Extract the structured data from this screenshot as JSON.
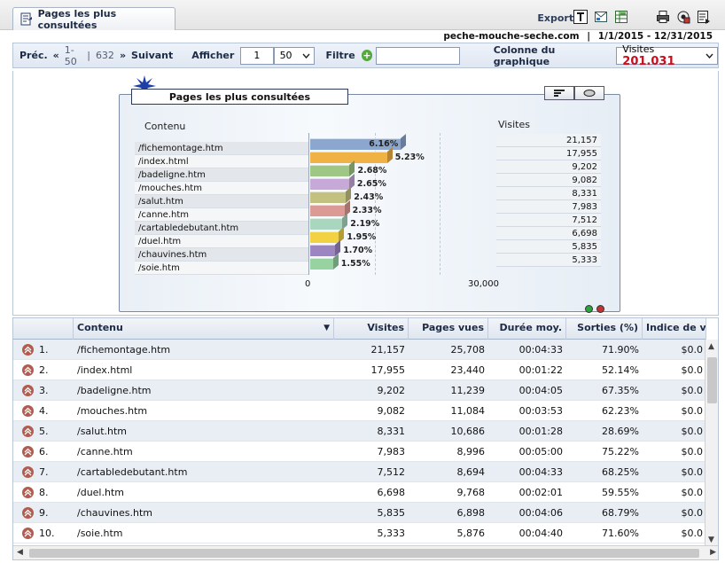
{
  "tab": {
    "title": "Pages les plus consultées"
  },
  "header": {
    "export_label": "Exporter",
    "site": "peche-mouche-seche.com",
    "separator": "|",
    "date_range": "1/1/2015 - 12/31/2015"
  },
  "toolbar": {
    "prev_label": "Préc.",
    "range": "1-50",
    "separator": "|",
    "total": "632",
    "next_label": "Suivant",
    "show_label": "Afficher",
    "page_value": "1",
    "page_size": "50",
    "filter_label": "Filtre",
    "filter_value": "",
    "chart_column_label": "Colonne du graphique",
    "chart_column_value": "Visites",
    "chart_column_total": "201.031"
  },
  "chart": {
    "title": "Pages les plus consultées",
    "content_label": "Contenu",
    "visits_label": "Visites",
    "axis_min": "0",
    "axis_max": "30,000"
  },
  "chart_data": {
    "type": "bar",
    "title": "Pages les plus consultées",
    "categories": [
      "/fichemontage.htm",
      "/index.html",
      "/badeligne.htm",
      "/mouches.htm",
      "/salut.htm",
      "/canne.htm",
      "/cartabledebutant.htm",
      "/duel.htm",
      "/chauvines.htm",
      "/soie.htm"
    ],
    "values": [
      21157,
      17955,
      9202,
      9082,
      8331,
      7983,
      7512,
      6698,
      5835,
      5333
    ],
    "value_labels": [
      "21,157",
      "17,955",
      "9,202",
      "9,082",
      "8,331",
      "7,983",
      "7,512",
      "6,698",
      "5,835",
      "5,333"
    ],
    "percent_labels": [
      "6.16%",
      "5.23%",
      "2.68%",
      "2.65%",
      "2.43%",
      "2.33%",
      "2.19%",
      "1.95%",
      "1.70%",
      "1.55%"
    ],
    "colors": [
      "#8ba7cf",
      "#f0b145",
      "#9ec684",
      "#c7a9d8",
      "#c2c17f",
      "#dc9a95",
      "#a9d6bf",
      "#f2d142",
      "#9c86c2",
      "#96d3a1"
    ],
    "xlabel": "",
    "ylabel": "",
    "xlim": [
      0,
      30000
    ],
    "orientation": "horizontal"
  },
  "table": {
    "columns": [
      "Contenu",
      "Visites",
      "Pages vues",
      "Durée moy.",
      "Sorties (%)",
      "Indice de vale"
    ],
    "rows": [
      {
        "rank": "1.",
        "content": "/fichemontage.htm",
        "visits": "21,157",
        "views": "25,708",
        "duration": "00:04:33",
        "exits": "71.90%",
        "index": "$0.0"
      },
      {
        "rank": "2.",
        "content": "/index.html",
        "visits": "17,955",
        "views": "23,440",
        "duration": "00:01:22",
        "exits": "52.14%",
        "index": "$0.0"
      },
      {
        "rank": "3.",
        "content": "/badeligne.htm",
        "visits": "9,202",
        "views": "11,239",
        "duration": "00:04:05",
        "exits": "67.35%",
        "index": "$0.0"
      },
      {
        "rank": "4.",
        "content": "/mouches.htm",
        "visits": "9,082",
        "views": "11,084",
        "duration": "00:03:53",
        "exits": "62.23%",
        "index": "$0.0"
      },
      {
        "rank": "5.",
        "content": "/salut.htm",
        "visits": "8,331",
        "views": "10,686",
        "duration": "00:01:28",
        "exits": "28.69%",
        "index": "$0.0"
      },
      {
        "rank": "6.",
        "content": "/canne.htm",
        "visits": "7,983",
        "views": "8,996",
        "duration": "00:05:00",
        "exits": "75.22%",
        "index": "$0.0"
      },
      {
        "rank": "7.",
        "content": "/cartabledebutant.htm",
        "visits": "7,512",
        "views": "8,694",
        "duration": "00:04:33",
        "exits": "68.25%",
        "index": "$0.0"
      },
      {
        "rank": "8.",
        "content": "/duel.htm",
        "visits": "6,698",
        "views": "9,768",
        "duration": "00:02:01",
        "exits": "59.55%",
        "index": "$0.0"
      },
      {
        "rank": "9.",
        "content": "/chauvines.htm",
        "visits": "5,835",
        "views": "6,898",
        "duration": "00:04:06",
        "exits": "68.79%",
        "index": "$0.0"
      },
      {
        "rank": "10.",
        "content": "/soie.htm",
        "visits": "5,333",
        "views": "5,876",
        "duration": "00:04:40",
        "exits": "71.60%",
        "index": "$0.0"
      }
    ]
  }
}
